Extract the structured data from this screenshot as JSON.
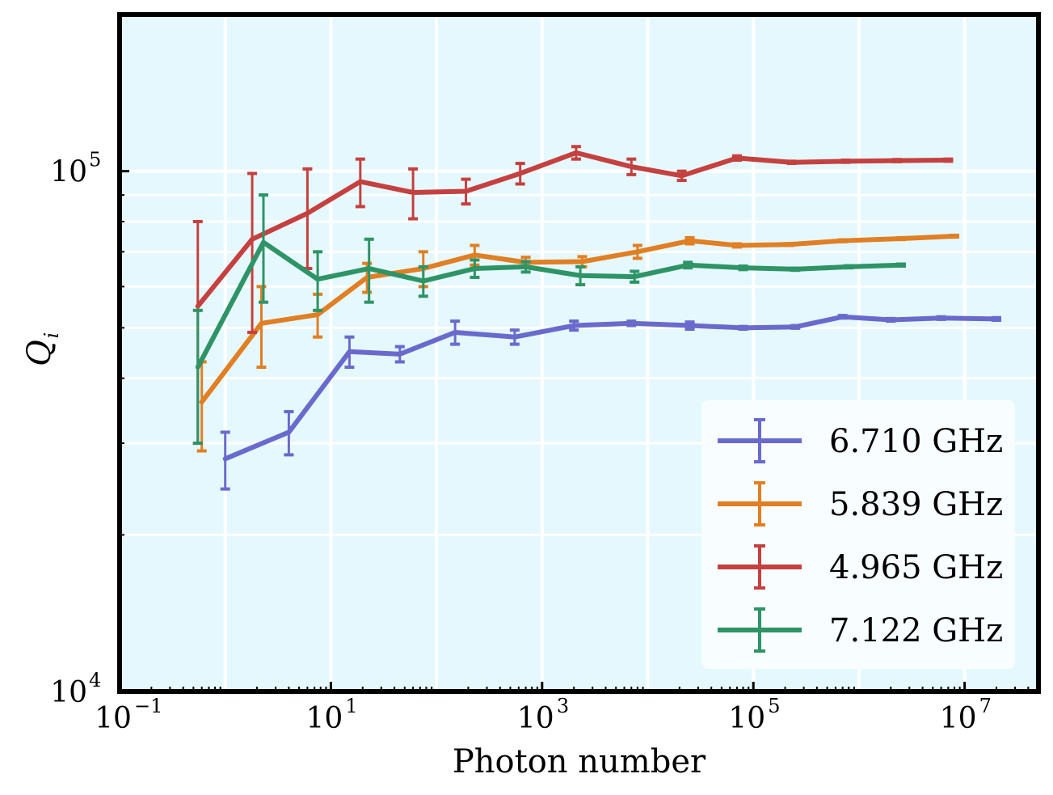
{
  "chart_data": {
    "type": "line",
    "xlabel": "Photon number",
    "ylabel": "Q",
    "ylabel_sub": "i",
    "xscale": "log",
    "yscale": "log",
    "xlim": [
      0.1,
      50000000
    ],
    "ylim": [
      10000,
      200000
    ],
    "x_ticks": [
      {
        "base": "10",
        "exp": "−1"
      },
      {
        "base": "10",
        "exp": "1"
      },
      {
        "base": "10",
        "exp": "3"
      },
      {
        "base": "10",
        "exp": "5"
      },
      {
        "base": "10",
        "exp": "7"
      }
    ],
    "y_ticks": [
      {
        "base": "10",
        "exp": "4"
      },
      {
        "base": "10",
        "exp": "5"
      }
    ],
    "grid": true,
    "background": "#e5f8fd",
    "legend_position": "lower-right",
    "series": [
      {
        "name": "6.710 GHz",
        "color": "#6a6acd",
        "x": [
          1.0,
          4.0,
          15,
          45,
          150,
          550,
          2000,
          7000,
          25000,
          80000,
          250000,
          700000,
          2000000,
          6000000,
          20000000
        ],
        "y": [
          28000,
          31500,
          45000,
          44500,
          49000,
          48000,
          50500,
          51000,
          50500,
          50000,
          50200,
          52500,
          51800,
          52200,
          52000
        ],
        "err": [
          3500,
          3000,
          3000,
          1500,
          2500,
          1500,
          1000,
          500,
          800,
          300,
          300,
          300,
          300,
          300,
          300
        ]
      },
      {
        "name": "5.839 GHz",
        "color": "#e07f24",
        "x": [
          0.6,
          2.2,
          7.5,
          22,
          75,
          230,
          700,
          2400,
          8000,
          25000,
          70000,
          220000,
          700000,
          2500000,
          8000000
        ],
        "y": [
          36000,
          51000,
          53000,
          62500,
          65000,
          69000,
          66800,
          67000,
          70000,
          73500,
          72000,
          72300,
          73500,
          74200,
          75000
        ],
        "err": [
          7000,
          9000,
          5000,
          4000,
          5000,
          3000,
          1500,
          1500,
          2000,
          1000,
          500,
          300,
          300,
          300,
          300
        ]
      },
      {
        "name": "4.965 GHz",
        "color": "#c44140",
        "x": [
          0.55,
          1.8,
          6.0,
          19,
          60,
          190,
          620,
          2100,
          7000,
          21000,
          70000,
          230000,
          750000,
          2300000,
          7000000
        ],
        "y": [
          55000,
          74000,
          83000,
          95500,
          91000,
          91500,
          99000,
          108500,
          102000,
          98000,
          106000,
          104000,
          104500,
          104800,
          105000
        ],
        "err": [
          25000,
          25000,
          18000,
          10000,
          10000,
          5000,
          4500,
          3000,
          3500,
          2000,
          1000,
          500,
          500,
          500,
          500
        ]
      },
      {
        "name": "7.122 GHz",
        "color": "#2e9466",
        "x": [
          0.55,
          2.3,
          7.5,
          23,
          75,
          230,
          700,
          2300,
          7500,
          24000,
          80000,
          250000,
          800000,
          2500000
        ],
        "y": [
          42000,
          73000,
          62000,
          65000,
          61500,
          65000,
          65500,
          63000,
          62700,
          66000,
          65200,
          64800,
          65500,
          66000
        ],
        "err": [
          12000,
          17000,
          8000,
          9000,
          4000,
          2500,
          1500,
          2500,
          1500,
          800,
          500,
          300,
          300,
          300
        ]
      }
    ]
  }
}
